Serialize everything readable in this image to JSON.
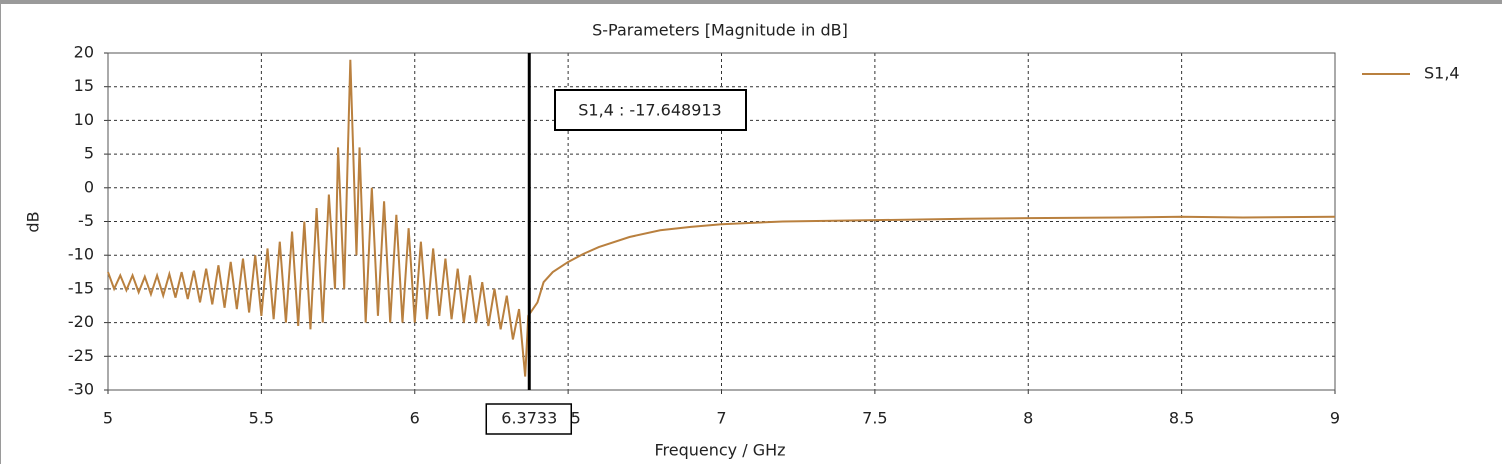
{
  "chart_data": {
    "type": "line",
    "title": "S-Parameters [Magnitude in dB]",
    "x_label": "Frequency / GHz",
    "y_label": "dB",
    "xlim": [
      5,
      9
    ],
    "ylim": [
      -30,
      20
    ],
    "xticks": [
      5,
      5.5,
      6,
      6.5,
      7,
      7.5,
      8,
      8.5,
      9
    ],
    "yticks": [
      -30,
      -25,
      -20,
      -15,
      -10,
      -5,
      0,
      5,
      10,
      15,
      20
    ],
    "grid": true,
    "legend": "right",
    "x": [
      5.0,
      5.02,
      5.04,
      5.06,
      5.08,
      5.1,
      5.12,
      5.14,
      5.16,
      5.18,
      5.2,
      5.22,
      5.24,
      5.26,
      5.28,
      5.3,
      5.32,
      5.34,
      5.36,
      5.38,
      5.4,
      5.42,
      5.44,
      5.46,
      5.48,
      5.5,
      5.52,
      5.54,
      5.56,
      5.58,
      5.6,
      5.62,
      5.64,
      5.66,
      5.68,
      5.7,
      5.72,
      5.74,
      5.75,
      5.77,
      5.79,
      5.81,
      5.82,
      5.84,
      5.86,
      5.88,
      5.9,
      5.92,
      5.94,
      5.96,
      5.98,
      6.0,
      6.02,
      6.04,
      6.06,
      6.08,
      6.1,
      6.12,
      6.14,
      6.16,
      6.18,
      6.2,
      6.22,
      6.24,
      6.26,
      6.28,
      6.3,
      6.32,
      6.34,
      6.36,
      6.37,
      6.4,
      6.42,
      6.45,
      6.5,
      6.55,
      6.6,
      6.7,
      6.8,
      6.9,
      7.0,
      7.2,
      7.5,
      7.8,
      8.0,
      8.3,
      8.5,
      8.7,
      9.0
    ],
    "series": [
      {
        "name": "S1,4",
        "color": "#b9803f",
        "values": [
          -12.5,
          -15,
          -13,
          -15.2,
          -13,
          -15.5,
          -13.2,
          -15.8,
          -13,
          -16,
          -12.8,
          -16.3,
          -12.5,
          -16.5,
          -12.3,
          -17,
          -12,
          -17.3,
          -11.5,
          -17.8,
          -11,
          -18,
          -10.5,
          -18.5,
          -10,
          -19,
          -9,
          -19.5,
          -8,
          -20,
          -6.5,
          -20.5,
          -5,
          -21,
          -3,
          -20,
          -1,
          -15,
          6,
          -15,
          19,
          -10,
          6,
          -20,
          0,
          -19,
          -2,
          -20,
          -4,
          -20,
          -6,
          -20,
          -8,
          -19.5,
          -9,
          -19,
          -10.5,
          -19.5,
          -12,
          -20,
          -13,
          -20,
          -14,
          -20.5,
          -15,
          -21,
          -16,
          -22.5,
          -18,
          -28,
          -19,
          -17,
          -14,
          -12.5,
          -11,
          -9.8,
          -8.8,
          -7.3,
          -6.3,
          -5.8,
          -5.4,
          -5.0,
          -4.8,
          -4.6,
          -4.5,
          -4.4,
          -4.3,
          -4.4,
          -4.3
        ]
      }
    ],
    "marker": {
      "x": 6.3733,
      "label": "S1,4 : -17.648913"
    }
  }
}
